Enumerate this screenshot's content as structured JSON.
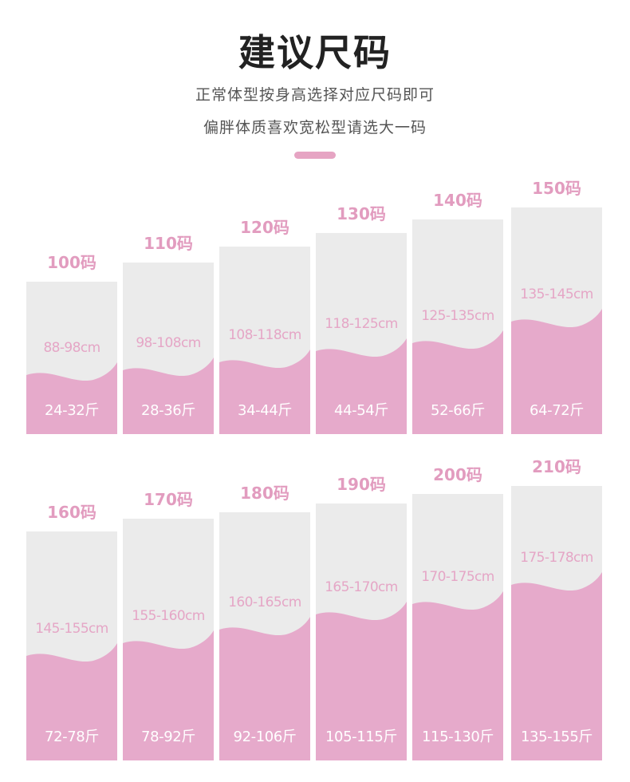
{
  "header": {
    "title": "建议尺码",
    "subtitle_line1": "正常体型按身高选择对应尺码即可",
    "subtitle_line2": "偏胖体质喜欢宽松型请选大一码"
  },
  "colors": {
    "pink": "#e6aacb",
    "card_gray": "#ebebeb",
    "size_label": "#e29cbf",
    "height_label": "#e5a6c6"
  },
  "sizes": [
    {
      "size": "100码",
      "height": "88-98cm",
      "weight": "24-32斤",
      "fill": 0.41
    },
    {
      "size": "110码",
      "height": "98-108cm",
      "weight": "28-36斤",
      "fill": 0.39
    },
    {
      "size": "120码",
      "height": "108-118cm",
      "weight": "34-44斤",
      "fill": 0.4
    },
    {
      "size": "130码",
      "height": "118-125cm",
      "weight": "44-54斤",
      "fill": 0.43
    },
    {
      "size": "140码",
      "height": "125-135cm",
      "weight": "52-66斤",
      "fill": 0.44
    },
    {
      "size": "150码",
      "height": "135-145cm",
      "weight": "64-72斤",
      "fill": 0.51
    },
    {
      "size": "160码",
      "height": "145-155cm",
      "weight": "72-78斤",
      "fill": 0.47
    },
    {
      "size": "170码",
      "height": "155-160cm",
      "weight": "78-92斤",
      "fill": 0.5
    },
    {
      "size": "180码",
      "height": "160-165cm",
      "weight": "92-106斤",
      "fill": 0.54
    },
    {
      "size": "190码",
      "height": "165-170cm",
      "weight": "105-115斤",
      "fill": 0.58
    },
    {
      "size": "200码",
      "height": "170-175cm",
      "weight": "115-130斤",
      "fill": 0.6
    },
    {
      "size": "210码",
      "height": "175-178cm",
      "weight": "135-155斤",
      "fill": 0.65
    }
  ]
}
